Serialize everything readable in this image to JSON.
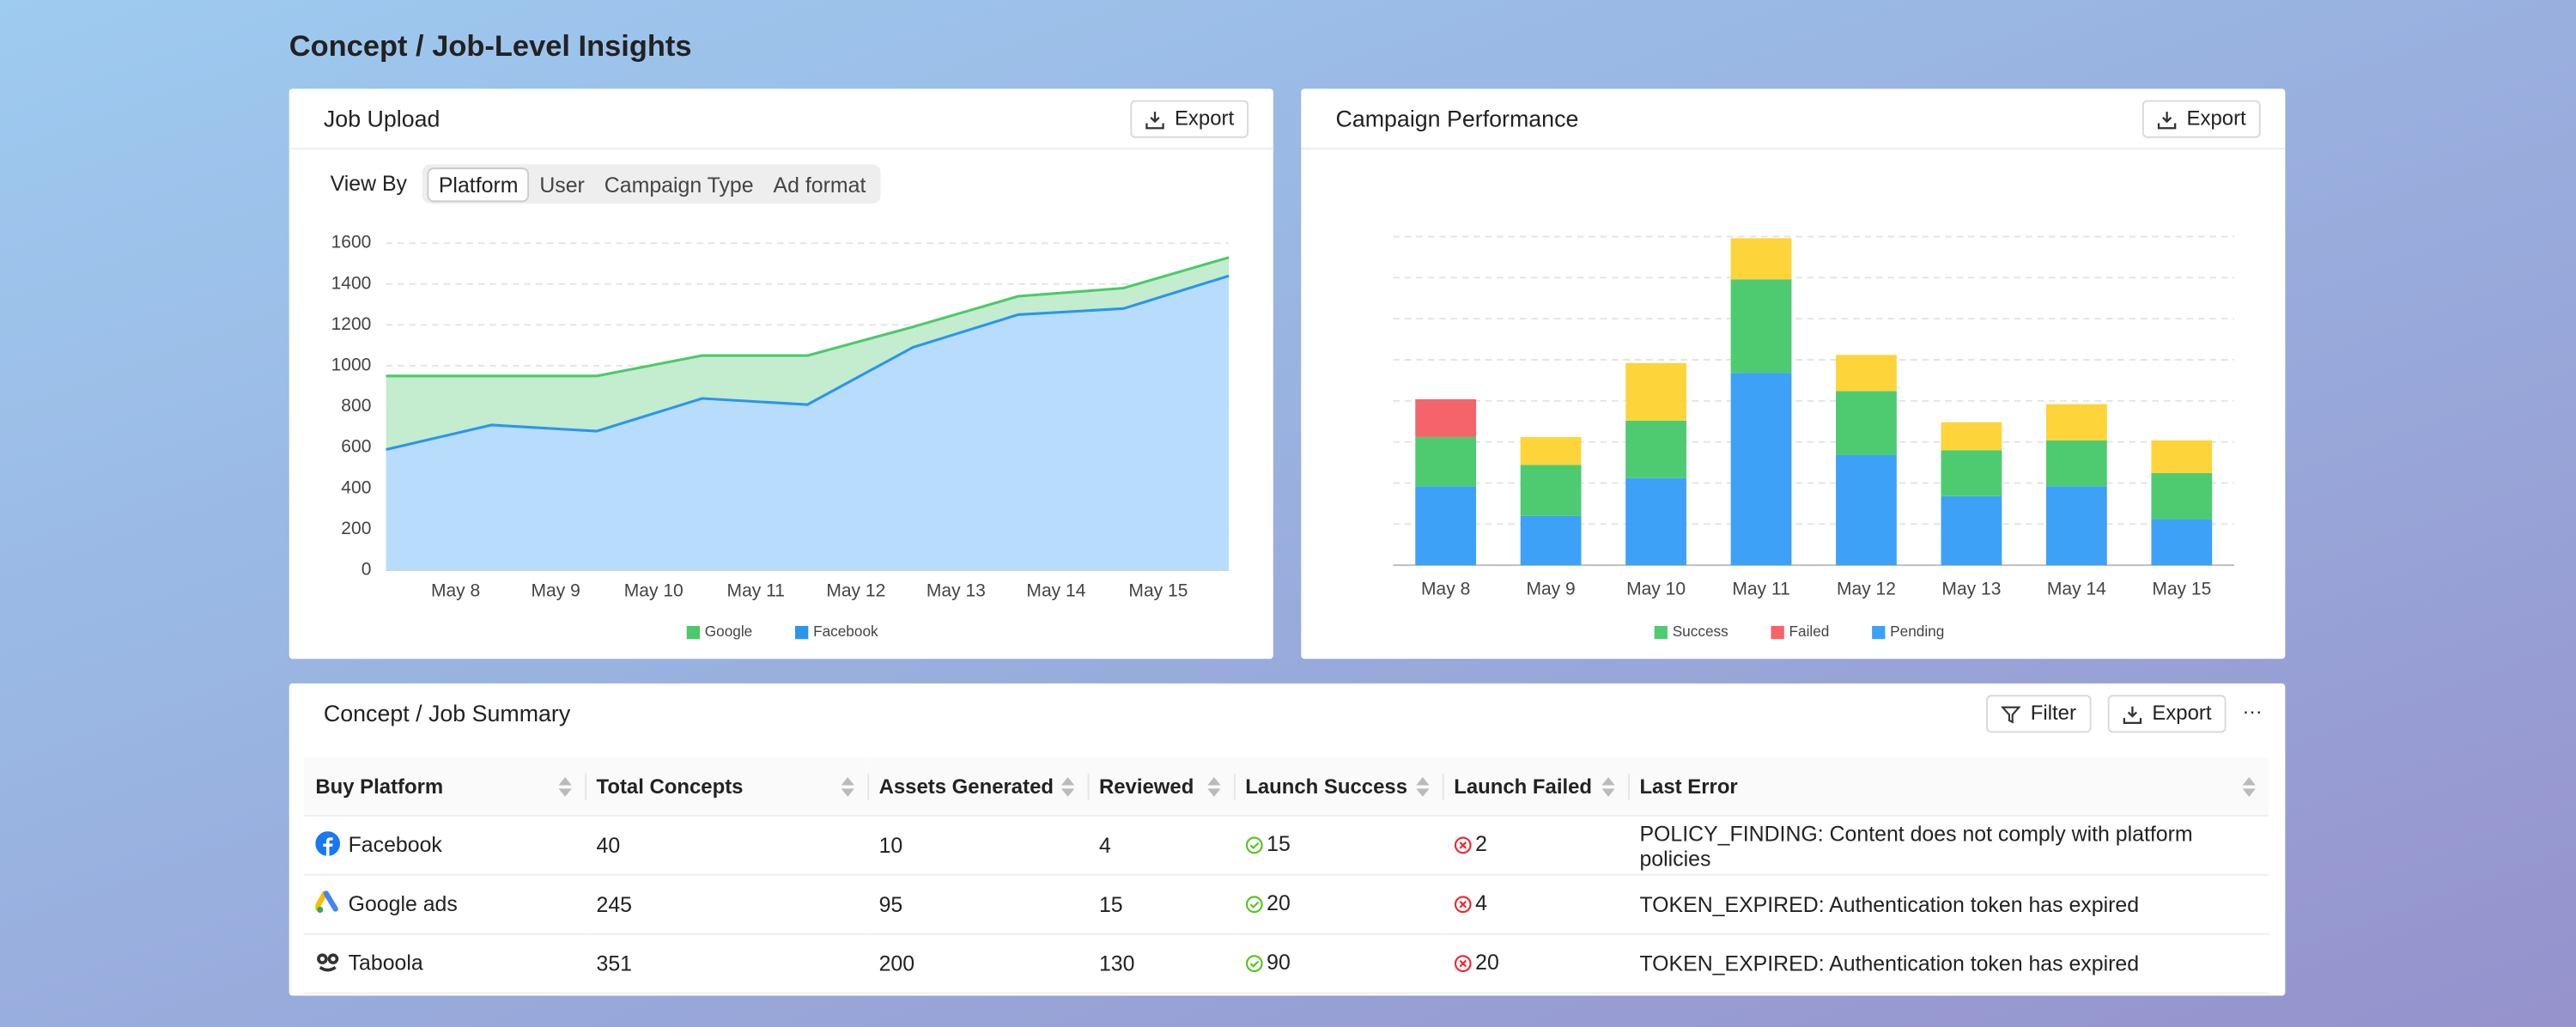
{
  "header": {
    "title": "Concept / Job-Level Insights"
  },
  "chart_data": [
    {
      "type": "area",
      "title": "Job Upload",
      "export": "Export",
      "view_by": {
        "label": "View By",
        "options": [
          "Platform",
          "User",
          "Campaign Type",
          "Ad format"
        ],
        "selected": 0
      },
      "x": [
        0,
        1,
        2,
        3,
        4,
        5,
        6,
        7,
        8
      ],
      "xlim": [
        0,
        8
      ],
      "xticks": [
        {
          "value": 0.66,
          "label": "May 8"
        },
        {
          "value": 1.61,
          "label": "May 9"
        },
        {
          "value": 2.54,
          "label": "May 10"
        },
        {
          "value": 3.51,
          "label": "May 11"
        },
        {
          "value": 4.46,
          "label": "May 12"
        },
        {
          "value": 5.41,
          "label": "May 13"
        },
        {
          "value": 6.36,
          "label": "May 14"
        },
        {
          "value": 7.33,
          "label": "May 15"
        }
      ],
      "ylim": [
        0,
        1600
      ],
      "yticks": [
        0,
        200,
        400,
        600,
        800,
        1000,
        1200,
        1400,
        1600
      ],
      "grid": true,
      "stacked": false,
      "series": [
        {
          "name": "Google",
          "color": "#4cc96a",
          "fill": "#c4ecce",
          "values": [
            950,
            950,
            950,
            1050,
            1050,
            1190,
            1340,
            1380,
            1530
          ]
        },
        {
          "name": "Facebook",
          "color": "#2b95ec",
          "fill": "#b8dcfb",
          "values": [
            590,
            710,
            680,
            840,
            810,
            1090,
            1250,
            1280,
            1440
          ]
        }
      ],
      "legend": "bottom"
    },
    {
      "type": "stacked-bar",
      "title": "Campaign Performance",
      "export": "Export",
      "categories": [
        "May 8",
        "May 9",
        "May 10",
        "May 11",
        "May 12",
        "May 13",
        "May 14",
        "May 15"
      ],
      "ylim": [
        0,
        8
      ],
      "yticks": [
        1,
        2,
        3,
        4,
        5,
        6,
        7,
        8
      ],
      "grid": true,
      "tick_labels": false,
      "series": [
        {
          "name": "Pending",
          "color": "#3ea1f8",
          "values": [
            1.92,
            1.2,
            2.12,
            4.68,
            2.68,
            1.68,
            1.92,
            1.12
          ]
        },
        {
          "name": "Success",
          "color": "#4ecb71",
          "values": [
            1.2,
            1.24,
            1.4,
            2.28,
            1.56,
            1.12,
            1.12,
            1.12
          ]
        },
        {
          "name": "Failed",
          "color": "#f4646a",
          "values": [
            0.92,
            0,
            0,
            0,
            0,
            0,
            0,
            0
          ]
        },
        {
          "name": null,
          "color": "#fdd53b",
          "values": [
            0,
            0.68,
            1.4,
            1.0,
            0.88,
            0.68,
            0.88,
            0.8
          ]
        }
      ],
      "legend_order": [
        1,
        2,
        0
      ],
      "legend": "bottom"
    }
  ],
  "table": {
    "title": "Concept / Job Summary",
    "filter": "Filter",
    "export": "Export",
    "more": "···",
    "columns": [
      "Buy Platform",
      "Total Concepts",
      "Assets Generated",
      "Reviewed",
      "Launch Success",
      "Launch Failed",
      "Last Error"
    ],
    "rows": [
      [
        "Facebook",
        "40",
        "10",
        "4",
        "15",
        "2",
        "POLICY_FINDING: Content does not comply with platform policies"
      ],
      [
        "Google ads",
        "245",
        "95",
        "15",
        "20",
        "4",
        "TOKEN_EXPIRED: Authentication token has expired"
      ],
      [
        "Taboola",
        "351",
        "200",
        "130",
        "90",
        "20",
        "TOKEN_EXPIRED: Authentication token has expired"
      ]
    ]
  }
}
